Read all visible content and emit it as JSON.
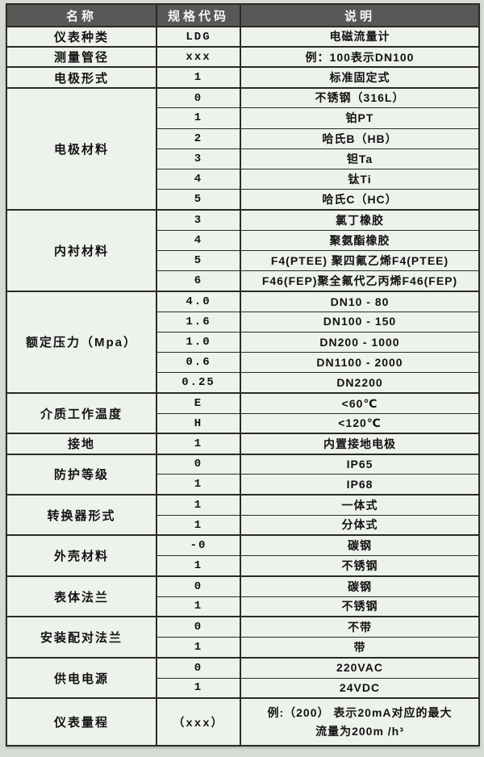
{
  "colors": {
    "page_background": "#d6dbd4",
    "cell_background": "#eef2ec",
    "header_background": "#5a5856",
    "header_text": "#f6f6f4",
    "border": "#2a2a28",
    "body_text": "#121212"
  },
  "table": {
    "columns": [
      "名称",
      "规格代码",
      "说明"
    ],
    "sections": [
      {
        "name": "仪表种类",
        "rows": [
          {
            "code": "LDG",
            "desc": "电磁流量计"
          }
        ]
      },
      {
        "name": "测量管径",
        "rows": [
          {
            "code": "xxx",
            "desc": "例：100表示DN100"
          }
        ]
      },
      {
        "name": "电极形式",
        "rows": [
          {
            "code": "1",
            "desc": "标准固定式"
          }
        ]
      },
      {
        "name": "电极材料",
        "rows": [
          {
            "code": "0",
            "desc": "不锈钢（316L）"
          },
          {
            "code": "1",
            "desc": "铂PT"
          },
          {
            "code": "2",
            "desc": "哈氏B（HB）"
          },
          {
            "code": "3",
            "desc": "钽Ta"
          },
          {
            "code": "4",
            "desc": "钛Ti"
          },
          {
            "code": "5",
            "desc": "哈氏C（HC）"
          }
        ]
      },
      {
        "name": "内衬材料",
        "rows": [
          {
            "code": "3",
            "desc": "氯丁橡胶"
          },
          {
            "code": "4",
            "desc": "聚氨酯橡胶"
          },
          {
            "code": "5",
            "desc": "F4(PTEE) 聚四氟乙烯F4(PTEE)"
          },
          {
            "code": "6",
            "desc": "F46(FEP)聚全氟代乙丙烯F46(FEP)"
          }
        ]
      },
      {
        "name": "额定压力（Mpa）",
        "rows": [
          {
            "code": "4.0",
            "desc": "DN10 - 80"
          },
          {
            "code": "1.6",
            "desc": "DN100 - 150"
          },
          {
            "code": "1.0",
            "desc": "DN200 - 1000"
          },
          {
            "code": "0.6",
            "desc": "DN1100 - 2000"
          },
          {
            "code": "0.25",
            "desc": "DN2200"
          }
        ]
      },
      {
        "name": "介质工作温度",
        "rows": [
          {
            "code": "E",
            "desc": "<60℃"
          },
          {
            "code": "H",
            "desc": "<120℃"
          }
        ]
      },
      {
        "name": "接地",
        "rows": [
          {
            "code": "1",
            "desc": "内置接地电极"
          }
        ]
      },
      {
        "name": "防护等级",
        "rows": [
          {
            "code": "0",
            "desc": "IP65"
          },
          {
            "code": "1",
            "desc": "IP68"
          }
        ]
      },
      {
        "name": "转换器形式",
        "rows": [
          {
            "code": "1",
            "desc": "一体式"
          },
          {
            "code": "1",
            "desc": "分体式"
          }
        ]
      },
      {
        "name": "外壳材料",
        "rows": [
          {
            "code": "-0",
            "desc": "碳钢"
          },
          {
            "code": "1",
            "desc": "不锈钢"
          }
        ]
      },
      {
        "name": "表体法兰",
        "rows": [
          {
            "code": "0",
            "desc": "碳钢"
          },
          {
            "code": "1",
            "desc": "不锈钢"
          }
        ]
      },
      {
        "name": "安装配对法兰",
        "rows": [
          {
            "code": "0",
            "desc": "不带"
          },
          {
            "code": "1",
            "desc": "带"
          }
        ]
      },
      {
        "name": "供电电源",
        "rows": [
          {
            "code": "0",
            "desc": "220VAC"
          },
          {
            "code": "1",
            "desc": "24VDC"
          }
        ]
      },
      {
        "name": "仪表量程",
        "tall": true,
        "rows": [
          {
            "code": "（xxx）",
            "desc": "例:（200） 表示20mA对应的最大\n流量为200m /h³"
          }
        ]
      }
    ]
  }
}
